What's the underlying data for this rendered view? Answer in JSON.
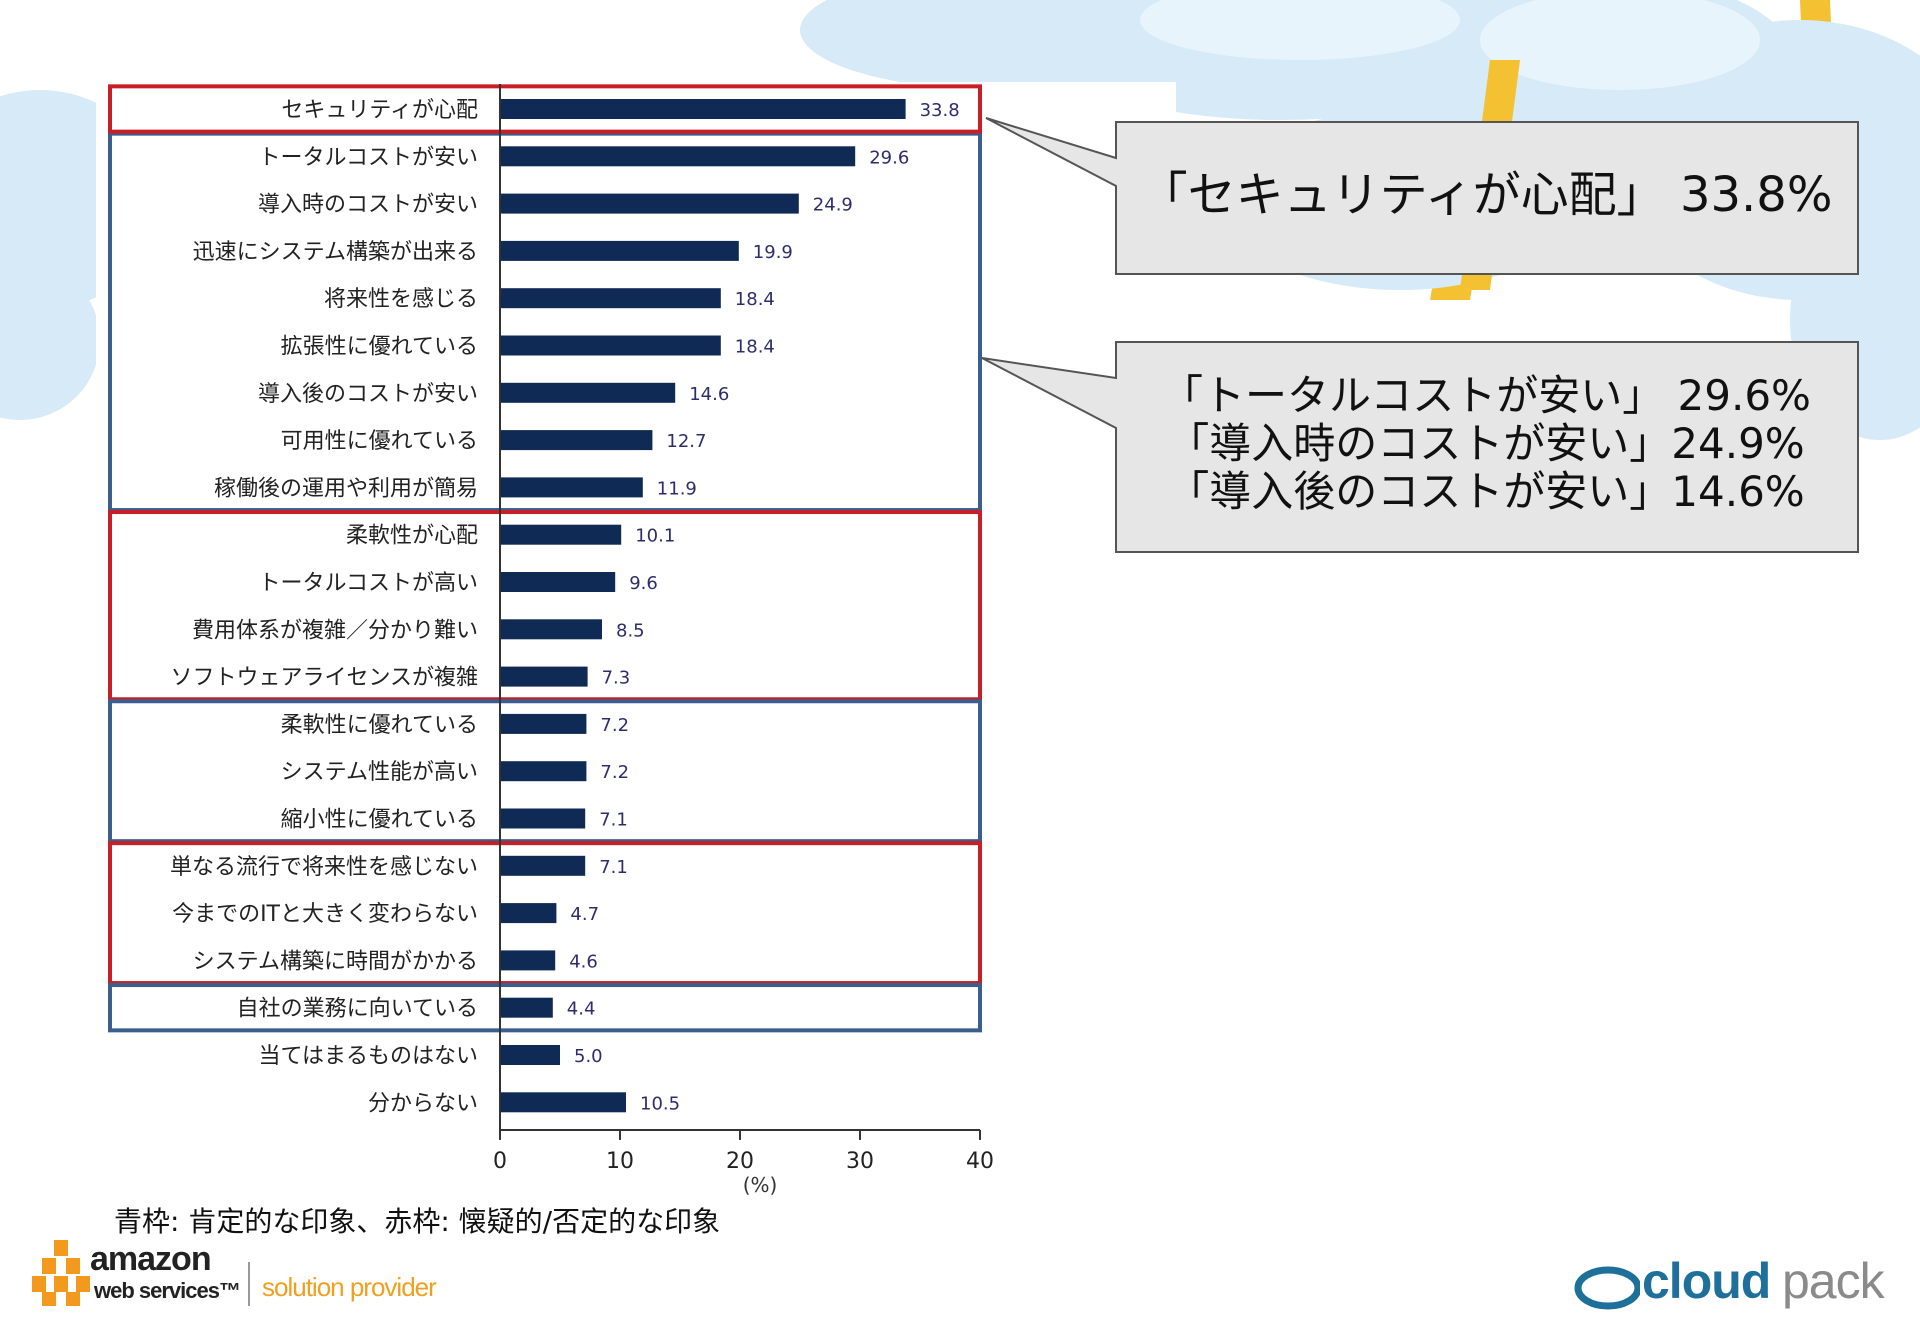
{
  "chart_data": {
    "type": "bar",
    "orientation": "horizontal",
    "categories": [
      "セキュリティが心配",
      "トータルコストが安い",
      "導入時のコストが安い",
      "迅速にシステム構築が出来る",
      "将来性を感じる",
      "拡張性に優れている",
      "導入後のコストが安い",
      "可用性に優れている",
      "稼働後の運用や利用が簡易",
      "柔軟性が心配",
      "トータルコストが高い",
      "費用体系が複雑／分かり難い",
      "ソフトウェアライセンスが複雑",
      "柔軟性に優れている",
      "システム性能が高い",
      "縮小性に優れている",
      "単なる流行で将来性を感じない",
      "今までのITと大きく変わらない",
      "システム構築に時間がかかる",
      "自社の業務に向いている",
      "当てはまるものはない",
      "分からない"
    ],
    "values": [
      33.8,
      29.6,
      24.9,
      19.9,
      18.4,
      18.4,
      14.6,
      12.7,
      11.9,
      10.1,
      9.6,
      8.5,
      7.3,
      7.2,
      7.2,
      7.1,
      7.1,
      4.7,
      4.6,
      4.4,
      5.0,
      10.5
    ],
    "value_labels": [
      "33.8",
      "29.6",
      "24.9",
      "19.9",
      "18.4",
      "18.4",
      "14.6",
      "12.7",
      "11.9",
      "10.1",
      "9.6",
      "8.5",
      "7.3",
      "7.2",
      "7.2",
      "7.1",
      "7.1",
      "4.7",
      "4.6",
      "4.4",
      "5.0",
      "10.5"
    ],
    "xlim": [
      0,
      40
    ],
    "xticks": [
      "0",
      "10",
      "20",
      "30",
      "40"
    ],
    "xlabel": "(%)",
    "bar_color": "#0f2a55",
    "value_label_color": "#2d2d6e",
    "grid": false,
    "groups": [
      {
        "kind": "positive",
        "start": 1,
        "end": 8
      },
      {
        "kind": "negative",
        "start": 0,
        "end": 0
      },
      {
        "kind": "negative",
        "start": 9,
        "end": 12
      },
      {
        "kind": "positive",
        "start": 13,
        "end": 15
      },
      {
        "kind": "negative",
        "start": 16,
        "end": 18
      },
      {
        "kind": "positive",
        "start": 19,
        "end": 19
      }
    ],
    "group_colors": {
      "positive": "#3a5f8f",
      "negative": "#c81f26"
    }
  },
  "callouts": [
    {
      "lines": [
        "「セキュリティが心配」 33.8%"
      ]
    },
    {
      "lines": [
        "「トータルコストが安い」 29.6%",
        "「導入時のコストが安い」24.9%",
        "「導入後のコストが安い」14.6%"
      ]
    }
  ],
  "legend_note": "青枠: 肯定的な印象、赤枠: 懐疑的/否定的な印象",
  "logos": {
    "aws_name": "amazon",
    "aws_sub": "web services™",
    "aws_solution": "solution provider",
    "cloudpack_a": "cloud",
    "cloudpack_b": "pack"
  },
  "colors": {
    "cloud": "#d6ebf7",
    "sun_ray": "#f3c131",
    "callout_fill": "#e6e6e6"
  }
}
